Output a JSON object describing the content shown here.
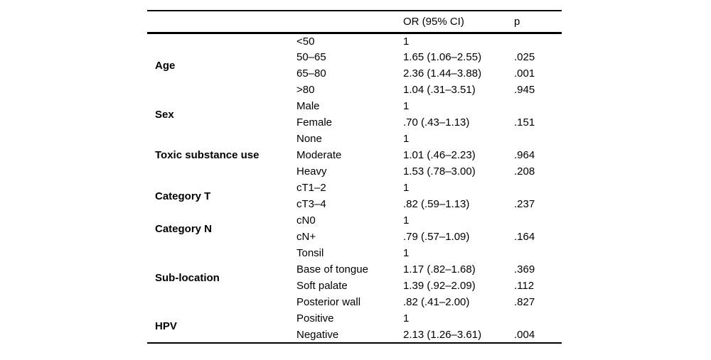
{
  "table": {
    "header": {
      "or": "OR (95% CI)",
      "p": "p"
    },
    "groups": [
      {
        "label": "Age",
        "rows": [
          {
            "category": "<50",
            "or": "1",
            "p": ""
          },
          {
            "category": "50–65",
            "or": "1.65 (1.06–2.55)",
            "p": ".025"
          },
          {
            "category": "65–80",
            "or": "2.36 (1.44–3.88)",
            "p": ".001"
          },
          {
            "category": ">80",
            "or": "1.04 (.31–3.51)",
            "p": ".945"
          }
        ]
      },
      {
        "label": "Sex",
        "rows": [
          {
            "category": "Male",
            "or": "1",
            "p": ""
          },
          {
            "category": "Female",
            "or": ".70 (.43–1.13)",
            "p": ".151"
          }
        ]
      },
      {
        "label": "Toxic substance use",
        "rows": [
          {
            "category": "None",
            "or": "1",
            "p": ""
          },
          {
            "category": "Moderate",
            "or": "1.01 (.46–2.23)",
            "p": ".964"
          },
          {
            "category": "Heavy",
            "or": "1.53 (.78–3.00)",
            "p": ".208"
          }
        ]
      },
      {
        "label": "Category T",
        "rows": [
          {
            "category": "cT1–2",
            "or": "1",
            "p": ""
          },
          {
            "category": "cT3–4",
            "or": ".82 (.59–1.13)",
            "p": ".237"
          }
        ]
      },
      {
        "label": "Category N",
        "rows": [
          {
            "category": "cN0",
            "or": "1",
            "p": ""
          },
          {
            "category": "cN+",
            "or": ".79 (.57–1.09)",
            "p": ".164"
          }
        ]
      },
      {
        "label": "Sub-location",
        "rows": [
          {
            "category": "Tonsil",
            "or": "1",
            "p": ""
          },
          {
            "category": "Base of tongue",
            "or": "1.17 (.82–1.68)",
            "p": ".369"
          },
          {
            "category": "Soft palate",
            "or": "1.39 (.92–2.09)",
            "p": ".112"
          },
          {
            "category": "Posterior wall",
            "or": ".82 (.41–2.00)",
            "p": ".827"
          }
        ]
      },
      {
        "label": "HPV",
        "rows": [
          {
            "category": "Positive",
            "or": "1",
            "p": ""
          },
          {
            "category": "Negative",
            "or": "2.13 (1.26–3.61)",
            "p": ".004"
          }
        ]
      }
    ]
  }
}
